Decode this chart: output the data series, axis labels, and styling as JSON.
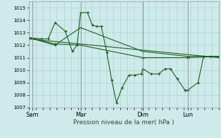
{
  "xlabel": "Pression niveau de la mer( hPa )",
  "ylim": [
    1007,
    1015.5
  ],
  "yticks": [
    1007,
    1008,
    1009,
    1010,
    1011,
    1012,
    1013,
    1014,
    1015
  ],
  "bg_color": "#ceeaea",
  "grid_color": "#aed4d4",
  "line_color": "#1a5c1a",
  "x_tick_labels": [
    "Sam",
    "Mar",
    "Dim",
    "Lun"
  ],
  "x_tick_positions": [
    35,
    105,
    195,
    260
  ],
  "xlim": [
    30,
    305
  ],
  "series1_x": [
    30,
    48,
    58,
    68,
    83,
    93,
    100,
    105,
    115,
    122,
    128,
    135,
    143,
    150,
    157,
    165,
    175,
    183,
    193,
    195,
    207,
    218,
    227,
    235,
    245,
    256,
    260,
    275,
    283,
    293,
    305
  ],
  "series1_y": [
    1012.6,
    1012.5,
    1012.5,
    1013.8,
    1013.1,
    1011.5,
    1012.0,
    1014.6,
    1014.6,
    1013.6,
    1013.5,
    1013.5,
    1011.4,
    1009.2,
    1007.4,
    1008.6,
    1009.6,
    1009.6,
    1009.7,
    1010.1,
    1009.7,
    1009.7,
    1010.1,
    1010.1,
    1009.3,
    1008.4,
    1008.4,
    1009.0,
    1011.1,
    1011.1,
    1011.1
  ],
  "series2_x": [
    30,
    68,
    105,
    195,
    260,
    305
  ],
  "series2_y": [
    1012.6,
    1012.1,
    1012.0,
    1011.0,
    1011.0,
    1011.1
  ],
  "series3_x": [
    30,
    68,
    105,
    195,
    260,
    305
  ],
  "series3_y": [
    1012.6,
    1012.0,
    1013.4,
    1011.5,
    1011.1,
    1011.1
  ],
  "trend_x": [
    30,
    305
  ],
  "trend_y": [
    1012.5,
    1011.0
  ]
}
